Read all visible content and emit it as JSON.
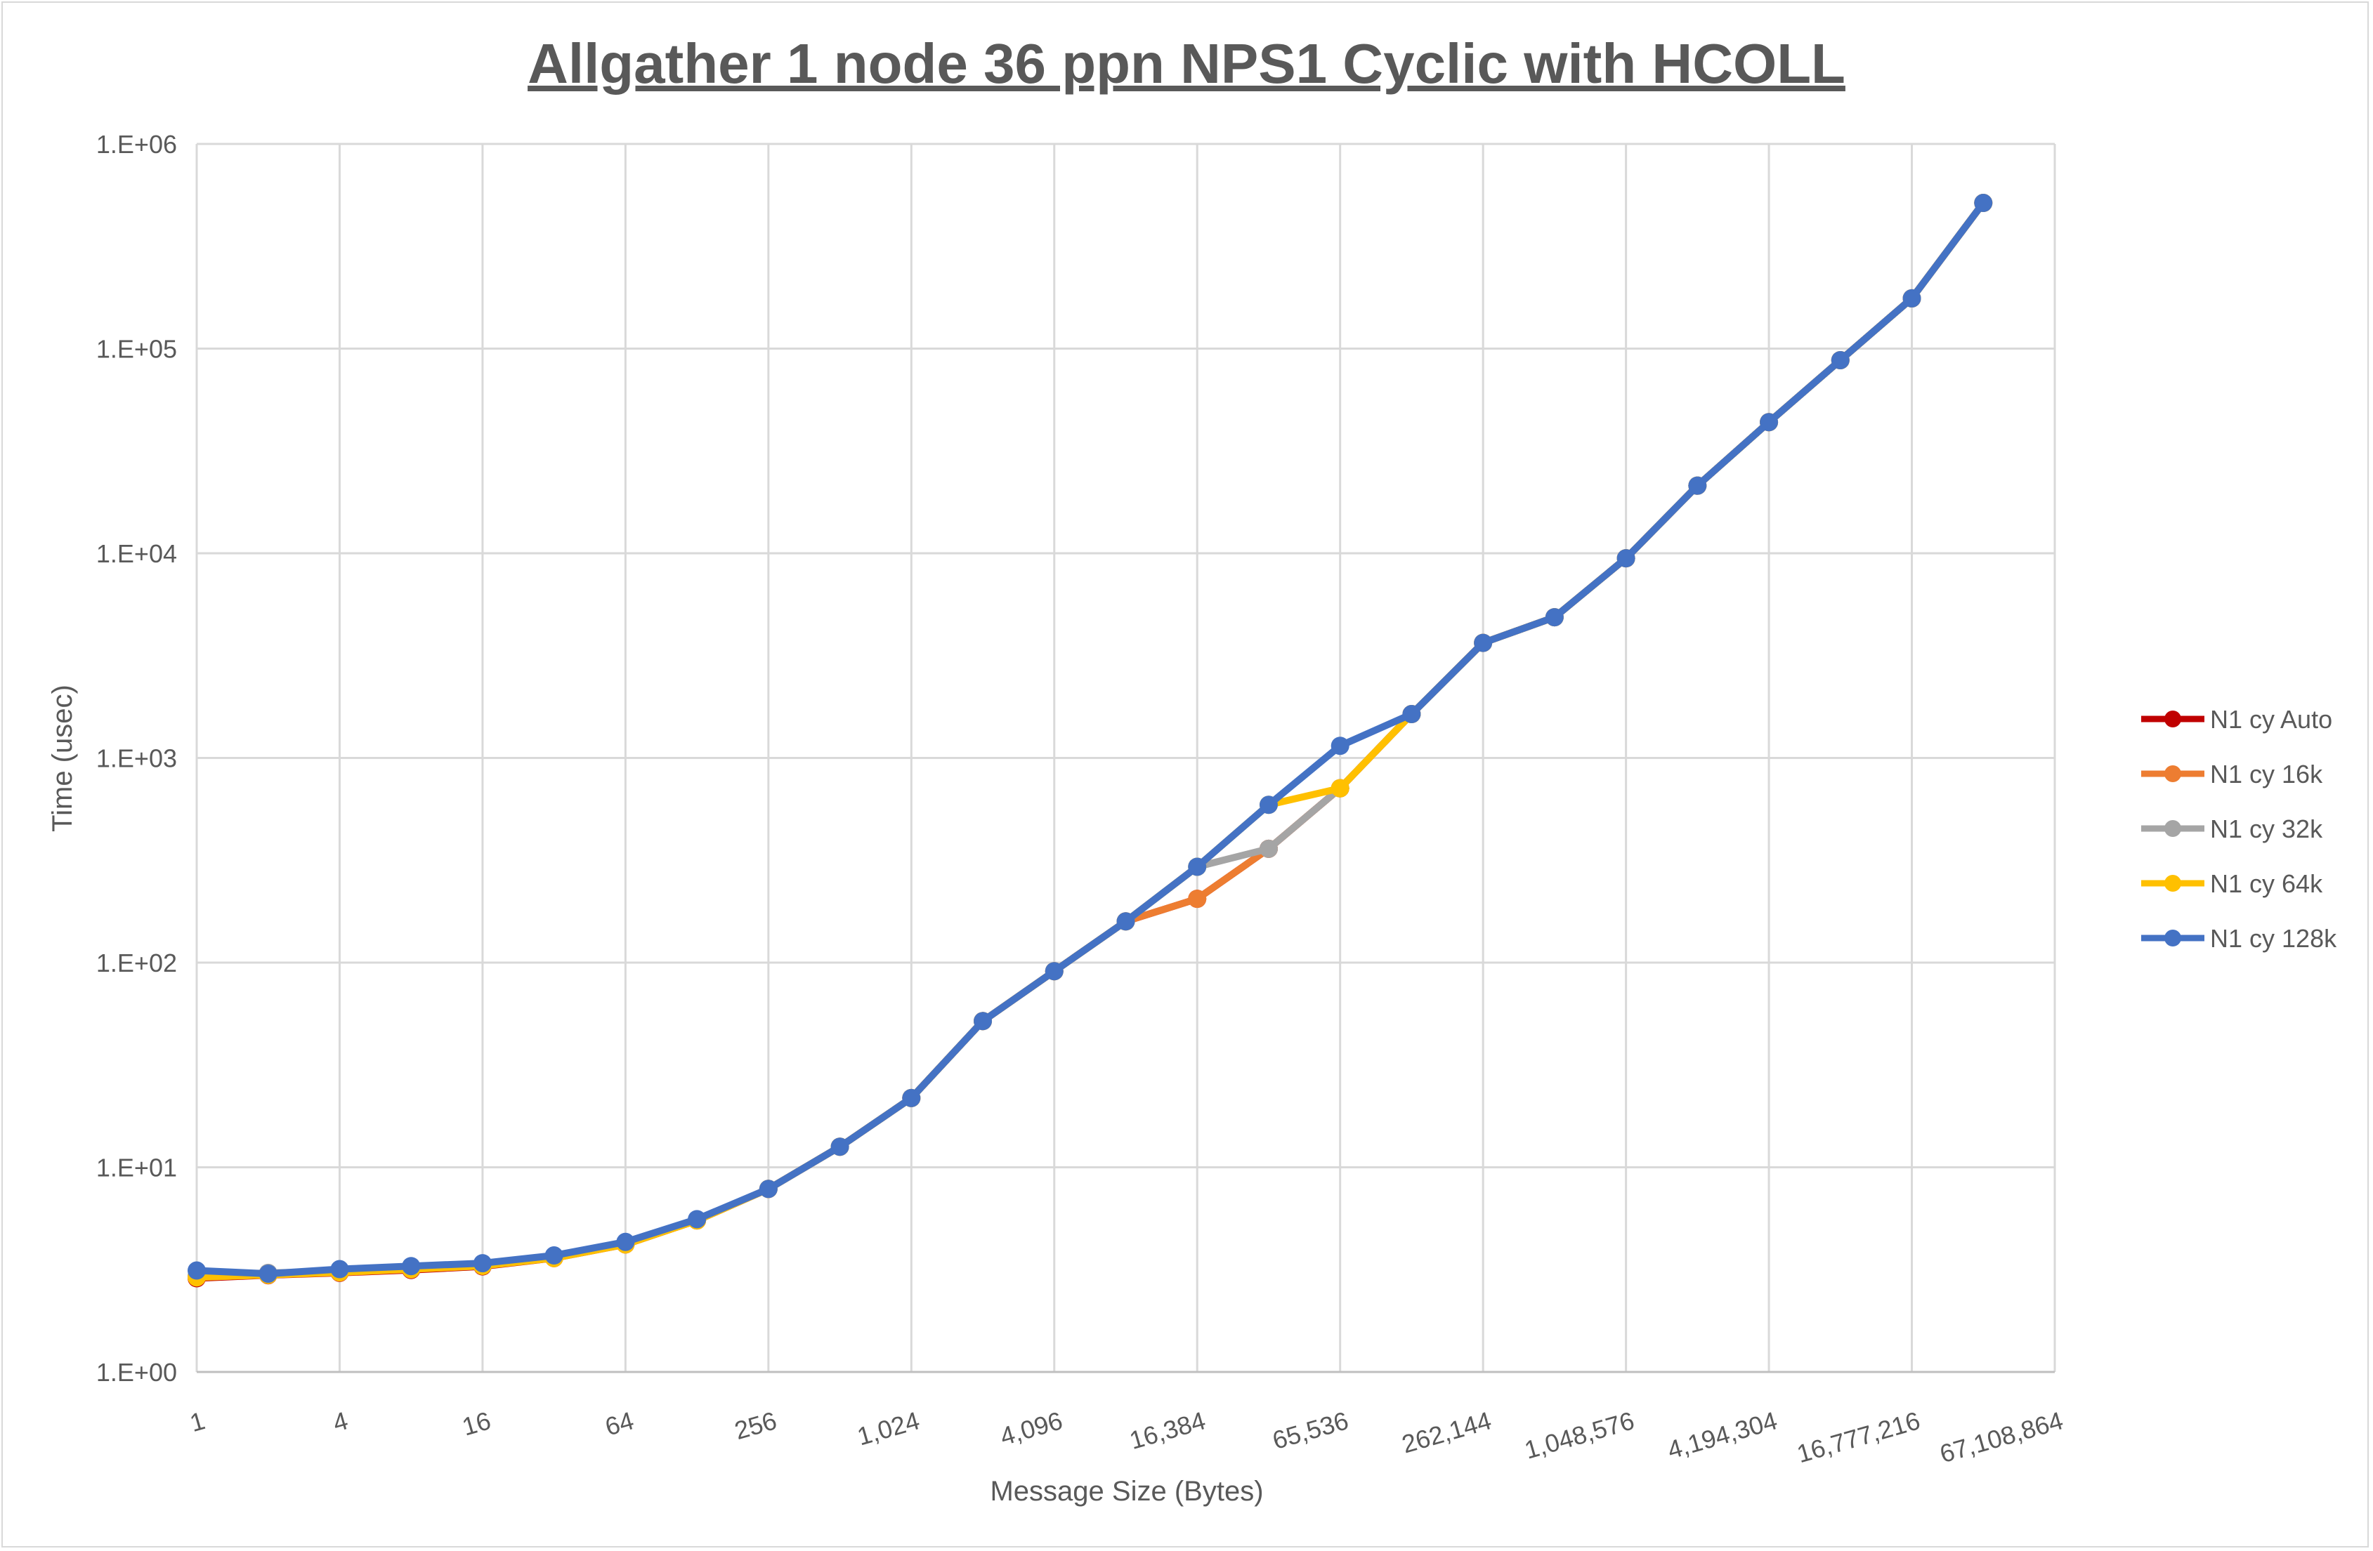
{
  "chart_data": {
    "type": "line",
    "title": "Allgather 1 node 36 ppn NPS1 Cyclic with HCOLL",
    "xlabel": "Message Size (Bytes)",
    "ylabel": "Time (usec)",
    "x_scale": "log2",
    "y_scale": "log10",
    "ylim": [
      1,
      1000000
    ],
    "xlim": [
      1,
      67108864
    ],
    "y_ticks": [
      "1.E+00",
      "1.E+01",
      "1.E+02",
      "1.E+03",
      "1.E+04",
      "1.E+05",
      "1.E+06"
    ],
    "x_ticks": [
      "1",
      "4",
      "16",
      "64",
      "256",
      "1,024",
      "4,096",
      "16,384",
      "65,536",
      "262,144",
      "1,048,576",
      "4,194,304",
      "16,777,216",
      "67,108,864"
    ],
    "grid": true,
    "legend_position": "right",
    "x": [
      1,
      2,
      4,
      8,
      16,
      32,
      64,
      128,
      256,
      512,
      1024,
      2048,
      4096,
      8192,
      16384,
      32768,
      65536,
      131072,
      262144,
      524288,
      1048576,
      2097152,
      4194304,
      8388608,
      16777216,
      33554432
    ],
    "series": [
      {
        "name": "N1 cy Auto",
        "color": "#c00000",
        "values": [
          2.87,
          2.97,
          3.05,
          3.15,
          3.28,
          3.6,
          4.2,
          5.5,
          7.84,
          12.6,
          21.8,
          51.8,
          90.8,
          159,
          205,
          360,
          711,
          1638,
          3650,
          4870,
          9450,
          21400,
          43700,
          87800,
          176000,
          515000
        ]
      },
      {
        "name": "N1 cy 16k",
        "color": "#ed7d31",
        "values": [
          2.9,
          2.98,
          3.06,
          3.17,
          3.3,
          3.62,
          4.22,
          5.5,
          7.84,
          12.6,
          21.8,
          51.8,
          90.8,
          159,
          205,
          360,
          711,
          1638,
          3650,
          4870,
          9450,
          21400,
          43700,
          87800,
          176000,
          515000
        ]
      },
      {
        "name": "N1 cy 32k",
        "color": "#a5a5a5",
        "values": [
          2.95,
          3.05,
          3.1,
          3.2,
          3.32,
          3.64,
          4.24,
          5.52,
          7.84,
          12.6,
          21.8,
          51.8,
          90.8,
          159,
          294,
          360,
          711,
          1638,
          3650,
          4870,
          9450,
          21400,
          43700,
          87800,
          176000,
          515000
        ]
      },
      {
        "name": "N1 cy 64k",
        "color": "#ffc000",
        "values": [
          2.9,
          2.98,
          3.07,
          3.18,
          3.3,
          3.6,
          4.2,
          5.5,
          7.84,
          12.6,
          21.8,
          51.8,
          90.8,
          159,
          294,
          590,
          711,
          1638,
          3650,
          4870,
          9450,
          21400,
          43700,
          87800,
          176000,
          515000
        ]
      },
      {
        "name": "N1 cy 128k",
        "color": "#4472c4",
        "values": [
          3.13,
          3.02,
          3.18,
          3.29,
          3.4,
          3.71,
          4.32,
          5.58,
          7.84,
          12.6,
          21.8,
          51.8,
          90.8,
          159,
          294,
          590,
          1146,
          1638,
          3650,
          4870,
          9450,
          21400,
          43700,
          87800,
          176000,
          515000
        ]
      }
    ]
  }
}
